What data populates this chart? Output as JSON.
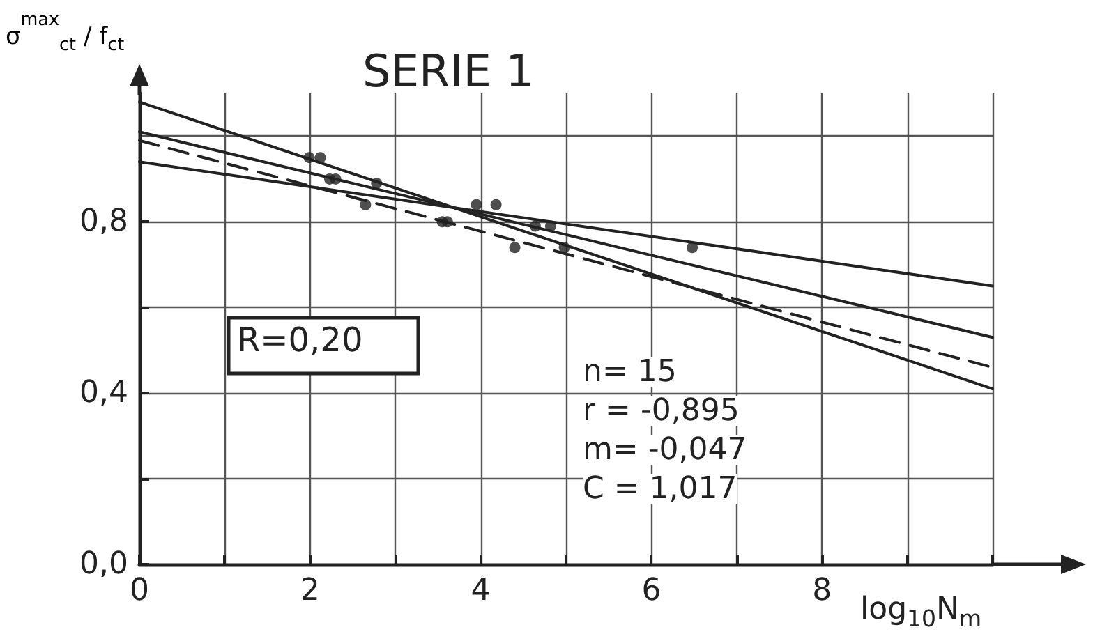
{
  "chart_data": {
    "type": "scatter",
    "title": "SERIE 1",
    "xlabel": "log$_{10}$N$_{m}$",
    "ylabel": "σ$^{max}$$_{ct}$ / f$_{ct}$",
    "xlim": [
      0,
      10
    ],
    "ylim": [
      0,
      1.1
    ],
    "xticks": [
      0,
      {
        "value": 1,
        "label": null
      },
      2,
      {
        "value": 3,
        "label": null
      },
      4,
      {
        "value": 5,
        "label": null
      },
      6,
      {
        "value": 7,
        "label": null
      },
      8,
      {
        "value": 9,
        "label": null
      },
      {
        "value": 10,
        "label": null
      }
    ],
    "yticks": [
      {
        "value": 0,
        "label": "0,0"
      },
      {
        "value": 0.2,
        "label": null
      },
      {
        "value": 0.4,
        "label": "0,4"
      },
      {
        "value": 0.6,
        "label": null
      },
      {
        "value": 0.8,
        "label": "0,8"
      },
      {
        "value": 1.0,
        "label": null
      }
    ],
    "grid": true,
    "series": [
      {
        "color": "#222222",
        "marker": "circle",
        "x": [
          1.99,
          2.12,
          2.23,
          2.3,
          2.78,
          2.65,
          3.55,
          3.61,
          3.95,
          4.18,
          4.4,
          4.64,
          4.82,
          4.98,
          6.48
        ],
        "values": [
          0.95,
          0.95,
          0.9,
          0.9,
          0.89,
          0.84,
          0.8,
          0.8,
          0.84,
          0.84,
          0.74,
          0.79,
          0.79,
          0.74,
          0.74
        ]
      },
      {
        "type": "line",
        "color": "#222222",
        "line_style": "solid",
        "marker": "none",
        "x": [
          0,
          10
        ],
        "values": [
          1.08,
          0.41
        ]
      },
      {
        "type": "line",
        "color": "#222222",
        "line_style": "solid",
        "marker": "none",
        "x": [
          0,
          10
        ],
        "values": [
          1.01,
          0.53
        ]
      },
      {
        "type": "line",
        "color": "#222222",
        "line_style": "solid",
        "marker": "none",
        "x": [
          0,
          10
        ],
        "values": [
          0.94,
          0.65
        ]
      },
      {
        "type": "line",
        "color": "#222222",
        "line_style": "dashed",
        "marker": "none",
        "x": [
          0,
          10
        ],
        "values": [
          0.99,
          0.46
        ]
      }
    ],
    "annotations": [
      "R=0,20",
      "n= 15",
      "r = -0,895",
      "m= -0,047",
      "C = 1,017"
    ]
  }
}
